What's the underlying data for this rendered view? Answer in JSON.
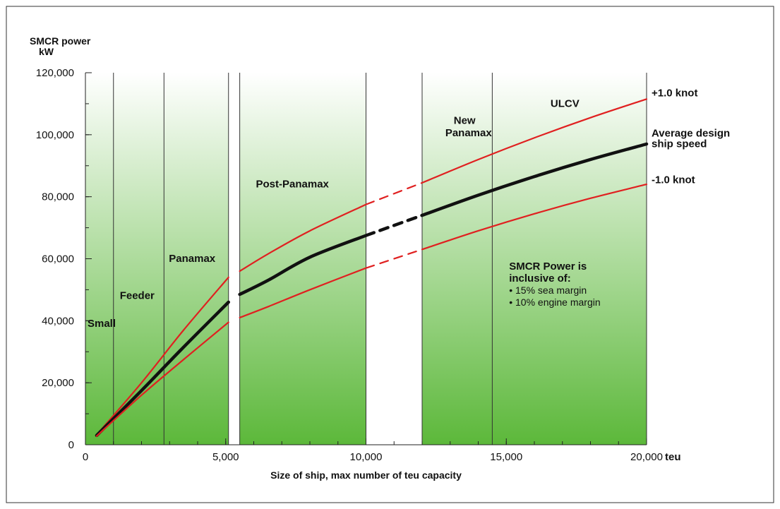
{
  "chart_data": {
    "type": "line",
    "ylabel_line1": "SMCR power",
    "ylabel_line2": "kW",
    "xlabel": "Size of ship, max number of teu capacity",
    "x_unit": "teu",
    "xlim": [
      0,
      20000
    ],
    "ylim": [
      0,
      120000
    ],
    "x_ticks": [
      {
        "value": 0,
        "label": "0"
      },
      {
        "value": 5000,
        "label": "5,000"
      },
      {
        "value": 10000,
        "label": "10,000"
      },
      {
        "value": 15000,
        "label": "15,000"
      },
      {
        "value": 20000,
        "label": "20,000"
      }
    ],
    "y_ticks": [
      {
        "value": 0,
        "label": "0"
      },
      {
        "value": 20000,
        "label": "20,000"
      },
      {
        "value": 40000,
        "label": "40,000"
      },
      {
        "value": 60000,
        "label": "60,000"
      },
      {
        "value": 80000,
        "label": "80,000"
      },
      {
        "value": 100000,
        "label": "100,000"
      },
      {
        "value": 120000,
        "label": "120,000"
      }
    ],
    "x_minor_step": 1000,
    "y_minor_step": 10000,
    "grid": false,
    "background": {
      "top_color": "#ffffff",
      "bottom_color": "#5cb83a"
    },
    "segment_boundaries": [
      1000,
      2800,
      5100,
      5500,
      10000,
      12000,
      14500,
      20000
    ],
    "regions": [
      {
        "label": "Small",
        "x": 0,
        "y": 38000
      },
      {
        "label": "Feeder",
        "x": 1150,
        "y": 47000
      },
      {
        "label": "Panamax",
        "x": 2900,
        "y": 59000
      },
      {
        "label": "Post-Panamax",
        "x": 6000,
        "y": 83000
      },
      {
        "label": "New",
        "x": 13050,
        "y": 103500
      },
      {
        "label": "Panamax",
        "x": 12750,
        "y": 99500
      },
      {
        "label": "ULCV",
        "x": 16500,
        "y": 109000
      }
    ],
    "series": [
      {
        "name": "+1.0 knot",
        "color": "#e02020",
        "segments": [
          {
            "style": "solid",
            "points": [
              [
                400,
                3200
              ],
              [
                2000,
                20000
              ],
              [
                3500,
                37000
              ],
              [
                5100,
                54000
              ]
            ]
          },
          {
            "style": "solid",
            "points": [
              [
                5500,
                56000
              ],
              [
                6500,
                61500
              ],
              [
                8000,
                69000
              ],
              [
                10000,
                77500
              ]
            ]
          },
          {
            "style": "dashed",
            "points": [
              [
                10000,
                77500
              ],
              [
                12000,
                84500
              ]
            ]
          },
          {
            "style": "solid",
            "points": [
              [
                12000,
                84500
              ],
              [
                14000,
                92000
              ],
              [
                16000,
                99000
              ],
              [
                18000,
                105500
              ],
              [
                20000,
                111500
              ]
            ]
          }
        ]
      },
      {
        "name": "Average design ship speed",
        "color": "#111111",
        "segments": [
          {
            "style": "solid",
            "points": [
              [
                400,
                3000
              ],
              [
                2000,
                17500
              ],
              [
                3500,
                31500
              ],
              [
                5100,
                46000
              ]
            ]
          },
          {
            "style": "solid",
            "points": [
              [
                5500,
                48500
              ],
              [
                6500,
                53000
              ],
              [
                8000,
                60500
              ],
              [
                10000,
                67500
              ]
            ]
          },
          {
            "style": "dashed",
            "points": [
              [
                10000,
                67500
              ],
              [
                12000,
                74000
              ]
            ]
          },
          {
            "style": "solid",
            "points": [
              [
                12000,
                74000
              ],
              [
                14000,
                80500
              ],
              [
                16000,
                86500
              ],
              [
                18000,
                92000
              ],
              [
                20000,
                97000
              ]
            ]
          }
        ]
      },
      {
        "name": "-1.0 knot",
        "color": "#e02020",
        "segments": [
          {
            "style": "solid",
            "points": [
              [
                400,
                2800
              ],
              [
                2000,
                16000
              ],
              [
                3500,
                27500
              ],
              [
                5100,
                39500
              ]
            ]
          },
          {
            "style": "solid",
            "points": [
              [
                5500,
                41000
              ],
              [
                6500,
                44500
              ],
              [
                8000,
                50000
              ],
              [
                10000,
                57000
              ]
            ]
          },
          {
            "style": "dashed",
            "points": [
              [
                10000,
                57000
              ],
              [
                12000,
                63000
              ]
            ]
          },
          {
            "style": "solid",
            "points": [
              [
                12000,
                63000
              ],
              [
                14000,
                69000
              ],
              [
                16000,
                74500
              ],
              [
                18000,
                79500
              ],
              [
                20000,
                84000
              ]
            ]
          }
        ]
      }
    ],
    "series_labels": [
      {
        "lines": [
          "+1.0 knot"
        ],
        "y": 113500
      },
      {
        "lines": [
          "Average design",
          "ship speed"
        ],
        "y": 100500
      },
      {
        "lines": [
          "-1.0 knot"
        ],
        "y": 85500
      }
    ],
    "note": {
      "title_lines": [
        "SMCR Power is",
        "inclusive of:"
      ],
      "items": [
        "• 15% sea margin",
        "• 10% engine margin"
      ],
      "x": 15100,
      "y": 56500
    }
  }
}
